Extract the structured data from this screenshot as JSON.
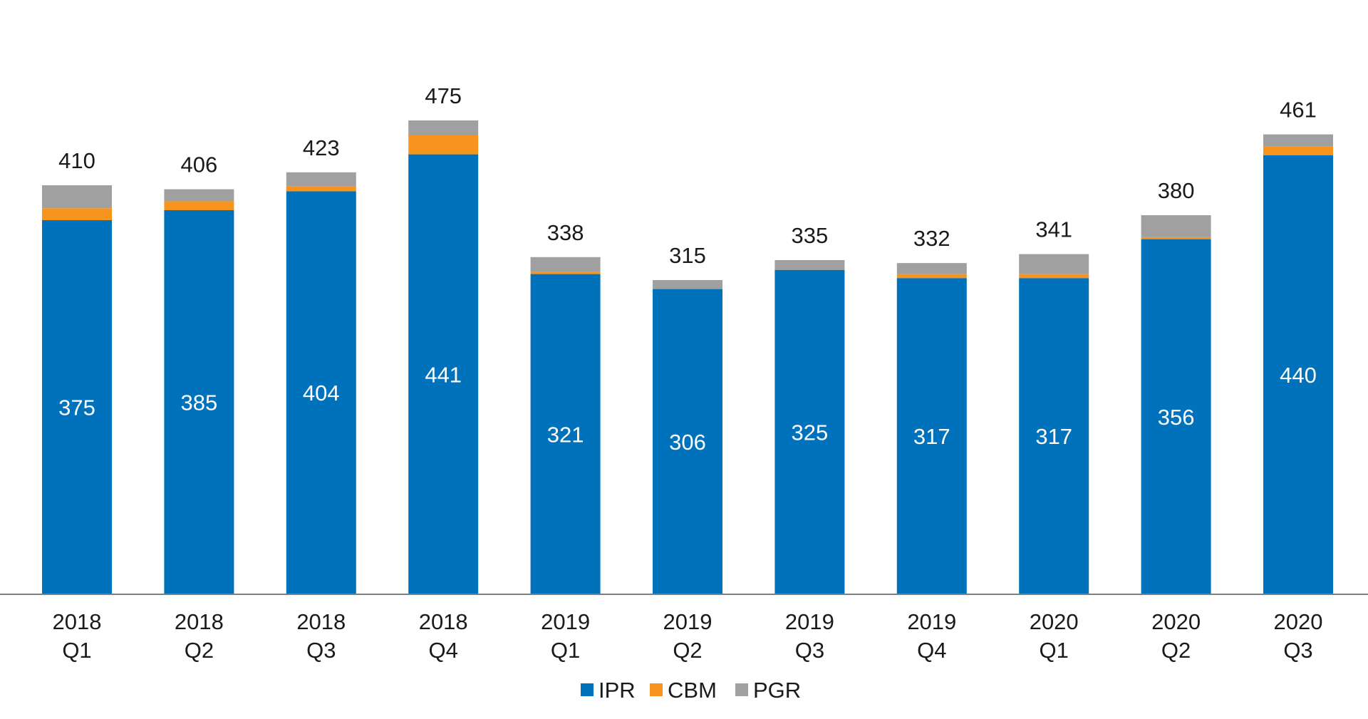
{
  "chart_data": {
    "type": "bar",
    "stacked": true,
    "categories": [
      [
        "2018",
        "Q1"
      ],
      [
        "2018",
        "Q2"
      ],
      [
        "2018",
        "Q3"
      ],
      [
        "2018",
        "Q4"
      ],
      [
        "2019",
        "Q1"
      ],
      [
        "2019",
        "Q2"
      ],
      [
        "2019",
        "Q3"
      ],
      [
        "2019",
        "Q4"
      ],
      [
        "2020",
        "Q1"
      ],
      [
        "2020",
        "Q2"
      ],
      [
        "2020",
        "Q3"
      ]
    ],
    "series": [
      {
        "name": "IPR",
        "color": "#0072BC",
        "values": [
          375,
          385,
          404,
          441,
          321,
          306,
          325,
          317,
          317,
          356,
          440
        ]
      },
      {
        "name": "CBM",
        "color": "#F7941D",
        "values": [
          12,
          9,
          5,
          19,
          2,
          0,
          0,
          4,
          4,
          2,
          9
        ]
      },
      {
        "name": "PGR",
        "color": "#A0A0A0",
        "values": [
          23,
          12,
          14,
          15,
          15,
          9,
          10,
          11,
          20,
          22,
          12
        ]
      }
    ],
    "totals": [
      410,
      406,
      423,
      475,
      338,
      315,
      335,
      332,
      341,
      380,
      461
    ],
    "title": "",
    "xlabel": "",
    "ylabel": "",
    "ylim": [
      0,
      500
    ],
    "grid": false,
    "legend": "bottom-center"
  }
}
